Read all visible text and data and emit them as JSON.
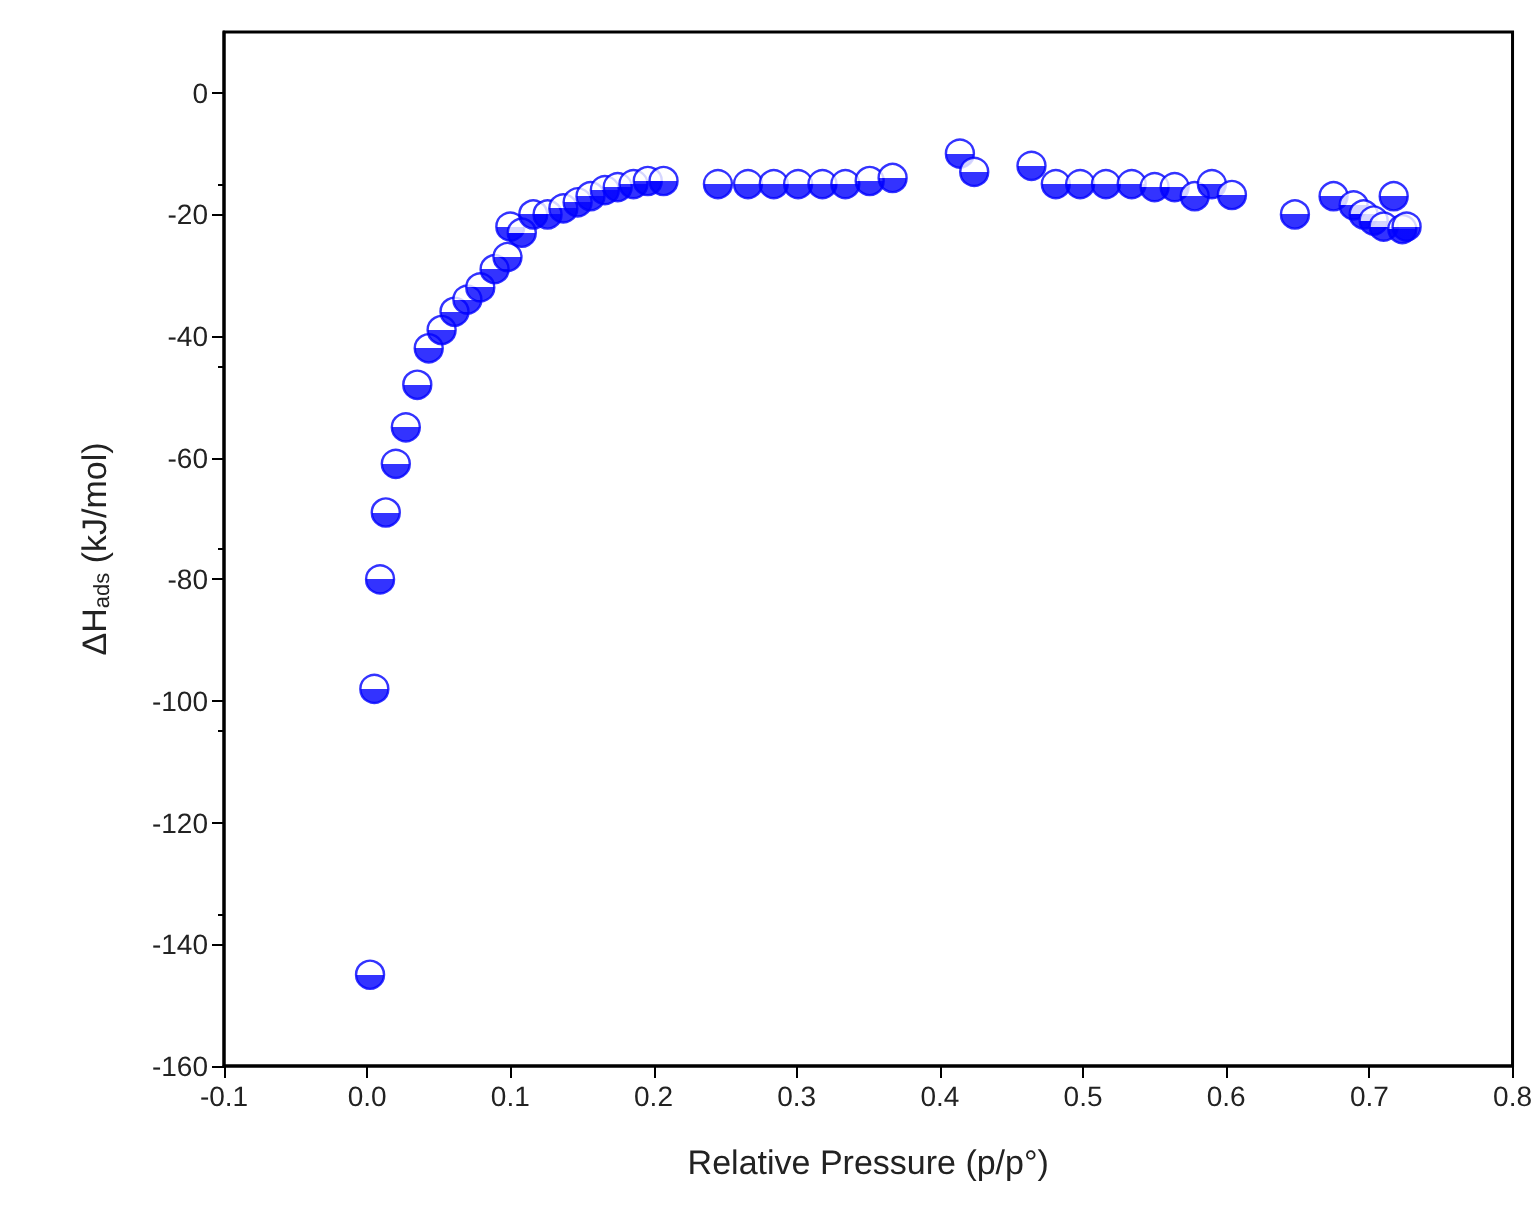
{
  "chart_data": {
    "type": "scatter",
    "xlabel": "Relative Pressure (p/p°)",
    "ylabel": "ΔH$_{ads}$ (kJ/mol)",
    "marker": "circle",
    "grid": false,
    "xlim": [
      -0.1,
      0.8
    ],
    "xticks": [
      -0.1,
      {
        "value": 0,
        "label": "0.0"
      },
      0.1,
      0.2,
      0.3,
      0.4,
      0.5,
      0.6,
      0.7,
      0.8
    ],
    "ylim": [
      -160,
      10
    ],
    "yticks": [
      -160,
      -140,
      -120,
      -100,
      -80,
      -60,
      -40,
      -20,
      0
    ],
    "series": [
      {
        "color": "#0000ff",
        "x": [
          0.002,
          0.005,
          0.009,
          0.013,
          0.02,
          0.027,
          0.035,
          0.043,
          0.052,
          0.061,
          0.07,
          0.079,
          0.089,
          0.098,
          0.1,
          0.108,
          0.116,
          0.126,
          0.137,
          0.147,
          0.156,
          0.166,
          0.175,
          0.186,
          0.196,
          0.207,
          0.245,
          0.266,
          0.284,
          0.301,
          0.318,
          0.334,
          0.351,
          0.367,
          0.414,
          0.424,
          0.464,
          0.481,
          0.498,
          0.516,
          0.534,
          0.55,
          0.564,
          0.578,
          0.59,
          0.604,
          0.648,
          0.675,
          0.689,
          0.696,
          0.703,
          0.71,
          0.717,
          0.723,
          0.726
        ],
        "values": [
          -145,
          -98,
          -80,
          -69,
          -61,
          -55,
          -48,
          -42,
          -39,
          -36,
          -34,
          -32,
          -29,
          -27,
          -22,
          -23,
          -20,
          -20,
          -19,
          -18,
          -17,
          -16,
          -15.5,
          -15,
          -14.5,
          -14.5,
          -15,
          -15,
          -15,
          -15,
          -15,
          -15,
          -14.5,
          -14,
          -10,
          -13,
          -12,
          -15,
          -15,
          -15,
          -15,
          -15.5,
          -15.5,
          -17,
          -15,
          -16.8,
          -20,
          -17,
          -18.5,
          -20,
          -21,
          -22,
          -17,
          -22.4,
          -22
        ]
      }
    ]
  }
}
